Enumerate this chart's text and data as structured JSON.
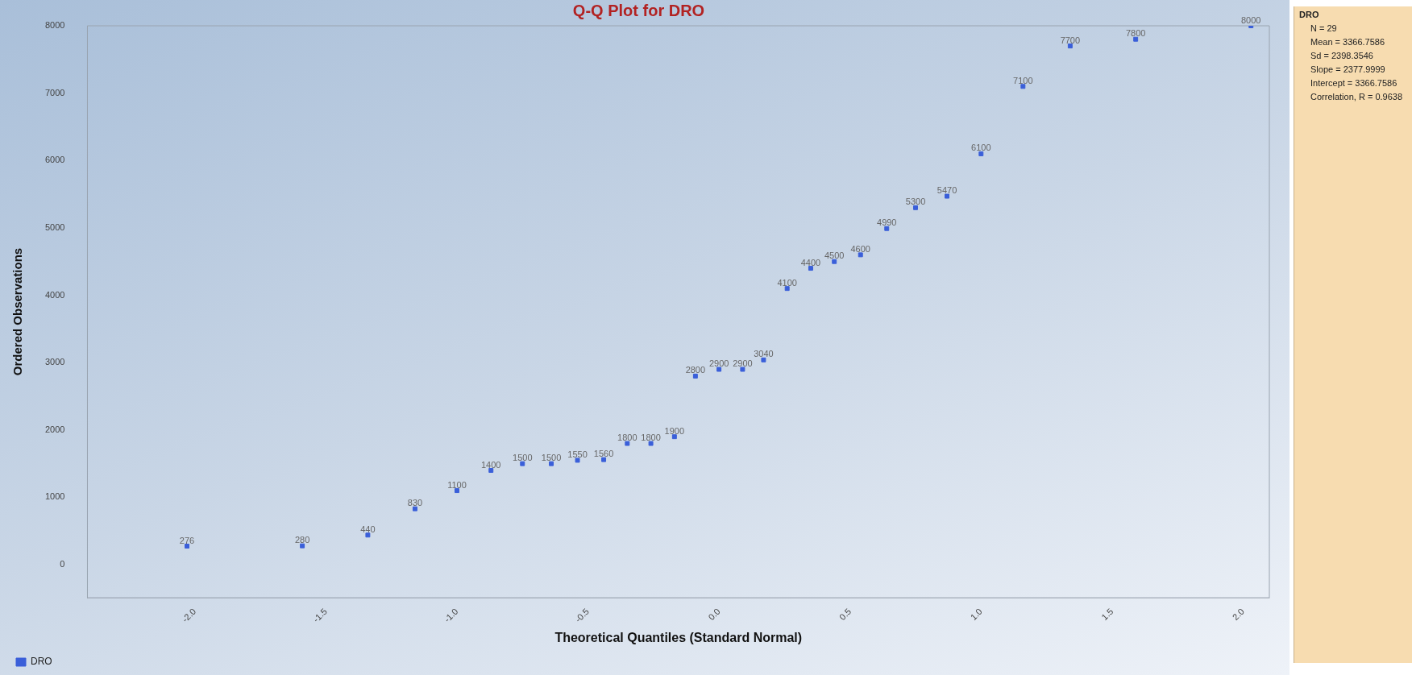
{
  "chart_data": {
    "type": "scatter",
    "title": "Q-Q Plot for DRO",
    "xlabel": "Theoretical Quantiles (Standard Normal)",
    "ylabel": "Ordered Observations",
    "series": [
      {
        "name": "DRO",
        "color": "#3a5fd9",
        "x": [
          -2.03,
          -1.59,
          -1.34,
          -1.16,
          -1.0,
          -0.87,
          -0.75,
          -0.64,
          -0.54,
          -0.44,
          -0.35,
          -0.26,
          -0.17,
          -0.09,
          0,
          0.09,
          0.17,
          0.26,
          0.35,
          0.44,
          0.54,
          0.64,
          0.75,
          0.87,
          1.0,
          1.16,
          1.34,
          1.59,
          2.03
        ],
        "values": [
          276,
          280,
          440,
          830,
          1100,
          1400,
          1500,
          1500,
          1550,
          1560,
          1800,
          1800,
          1900,
          2800,
          2900,
          2900,
          3040,
          4100,
          4400,
          4500,
          4600,
          4990,
          5300,
          5470,
          6100,
          7100,
          7700,
          7800,
          8000
        ]
      }
    ],
    "xlim": [
      -2.41,
      2.1
    ],
    "xticks": [
      {
        "value": -2,
        "label": "-2.0"
      },
      {
        "value": -1.5,
        "label": "-1.5"
      },
      {
        "value": -1,
        "label": "-1.0"
      },
      {
        "value": -0.5,
        "label": "-0.5"
      },
      {
        "value": 0,
        "label": "0.0"
      },
      {
        "value": 0.5,
        "label": "0.5"
      },
      {
        "value": 1,
        "label": "1.0"
      },
      {
        "value": 1.5,
        "label": "1.5"
      },
      {
        "value": 2,
        "label": "2.0"
      }
    ],
    "ylim": [
      -490,
      8000
    ],
    "yticks": [
      0,
      1000,
      2000,
      3000,
      4000,
      5000,
      6000,
      7000,
      8000
    ],
    "data_labels": true,
    "marker": "square",
    "grid": false,
    "legend": "bottom left",
    "annotations": [
      "DRO",
      "N = 29",
      "Mean = 3366.7586",
      "Sd = 2398.3546",
      "Slope = 2377.9999",
      "Intercept = 3366.7586",
      "Correlation, R = 0.9638"
    ]
  }
}
